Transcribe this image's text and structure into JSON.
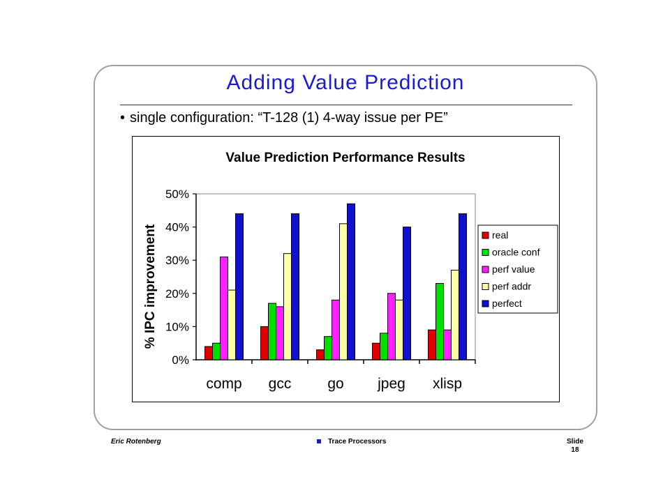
{
  "slide": {
    "title": "Adding Value Prediction",
    "bullet": "single configuration: “T-128 (1) 4-way issue per PE”"
  },
  "footer": {
    "author": "Eric Rotenberg",
    "center": "Trace Processors",
    "slide_label": "Slide",
    "slide_number": "18"
  },
  "colors": {
    "title": "#1a1ad6",
    "real": "#e00000",
    "oracle_conf": "#00e000",
    "perf_value": "#ff20ff",
    "perf_addr": "#ffffa8",
    "perfect": "#1010d0"
  },
  "chart_data": {
    "type": "bar",
    "title": "Value Prediction Performance Results",
    "xlabel": "",
    "ylabel": "% IPC improvement",
    "ylim": [
      0,
      50
    ],
    "yticks": [
      "0%",
      "10%",
      "20%",
      "30%",
      "40%",
      "50%"
    ],
    "categories": [
      "comp",
      "gcc",
      "go",
      "jpeg",
      "xlisp"
    ],
    "legend_position": "right",
    "grid": false,
    "series": [
      {
        "name": "real",
        "color": "#e00000",
        "values": [
          4,
          10,
          3,
          5,
          9
        ]
      },
      {
        "name": "oracle conf",
        "color": "#00e000",
        "values": [
          5,
          17,
          7,
          8,
          23
        ]
      },
      {
        "name": "perf value",
        "color": "#ff20ff",
        "values": [
          31,
          16,
          18,
          20,
          9
        ]
      },
      {
        "name": "perf addr",
        "color": "#ffffa8",
        "values": [
          21,
          32,
          41,
          18,
          27
        ]
      },
      {
        "name": "perfect",
        "color": "#1010d0",
        "values": [
          44,
          44,
          47,
          40,
          44
        ]
      }
    ]
  }
}
